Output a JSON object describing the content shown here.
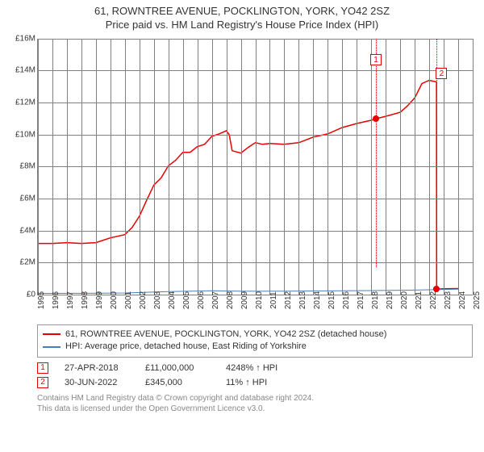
{
  "title": {
    "line1": "61, ROWNTREE AVENUE, POCKLINGTON, YORK, YO42 2SZ",
    "line2": "Price paid vs. HM Land Registry's House Price Index (HPI)"
  },
  "chart": {
    "background_color": "#ffffff",
    "grid_color": "#808080",
    "axis_color": "#808080",
    "text_color": "#333333",
    "font_size_axis": 10,
    "xlim": [
      1995,
      2025
    ],
    "ylim": [
      0,
      16000000
    ],
    "y_ticks": [
      {
        "value": 0,
        "label": "£0"
      },
      {
        "value": 2000000,
        "label": "£2M"
      },
      {
        "value": 4000000,
        "label": "£4M"
      },
      {
        "value": 6000000,
        "label": "£6M"
      },
      {
        "value": 8000000,
        "label": "£8M"
      },
      {
        "value": 10000000,
        "label": "£10M"
      },
      {
        "value": 12000000,
        "label": "£12M"
      },
      {
        "value": 14000000,
        "label": "£14M"
      },
      {
        "value": 16000000,
        "label": "£16M"
      }
    ],
    "x_ticks": [
      1995,
      1996,
      1997,
      1998,
      1999,
      2000,
      2001,
      2002,
      2003,
      2004,
      2005,
      2006,
      2007,
      2008,
      2009,
      2010,
      2011,
      2012,
      2013,
      2014,
      2015,
      2016,
      2017,
      2018,
      2019,
      2020,
      2021,
      2022,
      2023,
      2024,
      2025
    ],
    "series": [
      {
        "name": "61, ROWNTREE AVENUE, POCKLINGTON, YORK, YO42 2SZ (detached house)",
        "color": "#e60000",
        "line_width": 1.5,
        "data": [
          {
            "x": 1995.0,
            "y": 3200000
          },
          {
            "x": 1996.0,
            "y": 3200000
          },
          {
            "x": 1997.0,
            "y": 3250000
          },
          {
            "x": 1998.0,
            "y": 3200000
          },
          {
            "x": 1999.0,
            "y": 3250000
          },
          {
            "x": 2000.0,
            "y": 3550000
          },
          {
            "x": 2001.0,
            "y": 3750000
          },
          {
            "x": 2001.5,
            "y": 4200000
          },
          {
            "x": 2002.0,
            "y": 4900000
          },
          {
            "x": 2002.5,
            "y": 5900000
          },
          {
            "x": 2003.0,
            "y": 6850000
          },
          {
            "x": 2003.5,
            "y": 7300000
          },
          {
            "x": 2004.0,
            "y": 8050000
          },
          {
            "x": 2004.5,
            "y": 8400000
          },
          {
            "x": 2005.0,
            "y": 8900000
          },
          {
            "x": 2005.5,
            "y": 8900000
          },
          {
            "x": 2006.0,
            "y": 9250000
          },
          {
            "x": 2006.5,
            "y": 9400000
          },
          {
            "x": 2007.0,
            "y": 9900000
          },
          {
            "x": 2007.5,
            "y": 10050000
          },
          {
            "x": 2008.0,
            "y": 10250000
          },
          {
            "x": 2008.2,
            "y": 10000000
          },
          {
            "x": 2008.4,
            "y": 9000000
          },
          {
            "x": 2009.0,
            "y": 8850000
          },
          {
            "x": 2009.5,
            "y": 9200000
          },
          {
            "x": 2010.0,
            "y": 9500000
          },
          {
            "x": 2010.5,
            "y": 9400000
          },
          {
            "x": 2011.0,
            "y": 9450000
          },
          {
            "x": 2012.0,
            "y": 9400000
          },
          {
            "x": 2013.0,
            "y": 9500000
          },
          {
            "x": 2014.0,
            "y": 9850000
          },
          {
            "x": 2015.0,
            "y": 10050000
          },
          {
            "x": 2016.0,
            "y": 10450000
          },
          {
            "x": 2017.0,
            "y": 10700000
          },
          {
            "x": 2018.0,
            "y": 10900000
          },
          {
            "x": 2018.32,
            "y": 11000000
          },
          {
            "x": 2019.0,
            "y": 11150000
          },
          {
            "x": 2020.0,
            "y": 11400000
          },
          {
            "x": 2020.5,
            "y": 11800000
          },
          {
            "x": 2021.0,
            "y": 12300000
          },
          {
            "x": 2021.5,
            "y": 13200000
          },
          {
            "x": 2022.0,
            "y": 13400000
          },
          {
            "x": 2022.5,
            "y": 13300000
          },
          {
            "x": 2022.51,
            "y": 345000
          },
          {
            "x": 2023.0,
            "y": 370000
          },
          {
            "x": 2024.0,
            "y": 380000
          }
        ]
      },
      {
        "name": "HPI: Average price, detached house, East Riding of Yorkshire",
        "color": "#4a7ebb",
        "line_width": 1.0,
        "data": [
          {
            "x": 1995.0,
            "y": 75000
          },
          {
            "x": 1998.0,
            "y": 82000
          },
          {
            "x": 2001.0,
            "y": 102000
          },
          {
            "x": 2004.0,
            "y": 190000
          },
          {
            "x": 2007.0,
            "y": 240000
          },
          {
            "x": 2009.0,
            "y": 210000
          },
          {
            "x": 2012.0,
            "y": 218000
          },
          {
            "x": 2015.0,
            "y": 232000
          },
          {
            "x": 2018.0,
            "y": 253000
          },
          {
            "x": 2021.0,
            "y": 285000
          },
          {
            "x": 2024.0,
            "y": 345000
          }
        ]
      }
    ],
    "markers": [
      {
        "id": "1",
        "x": 2018.32,
        "y": 11000000,
        "color": "#e60000",
        "label_y_offset_m": 3300000
      },
      {
        "id": "2",
        "x": 2022.5,
        "y": 345000,
        "color": "#e60000",
        "label_y_offset_m": 13100000,
        "label_x_offset_yr": 0.35
      }
    ]
  },
  "legend": {
    "items": [
      {
        "color": "#e60000",
        "label": "61, ROWNTREE AVENUE, POCKLINGTON, YORK, YO42 2SZ (detached house)"
      },
      {
        "color": "#4a7ebb",
        "label": "HPI: Average price, detached house, East Riding of Yorkshire"
      }
    ]
  },
  "transactions": [
    {
      "id": "1",
      "color": "#e60000",
      "date": "27-APR-2018",
      "price": "£11,000,000",
      "delta": "4248% ↑ HPI"
    },
    {
      "id": "2",
      "color": "#e60000",
      "date": "30-JUN-2022",
      "price": "£345,000",
      "delta": "11% ↑ HPI"
    }
  ],
  "license": {
    "line1": "Contains HM Land Registry data © Crown copyright and database right 2024.",
    "line2": "This data is licensed under the Open Government Licence v3.0."
  }
}
